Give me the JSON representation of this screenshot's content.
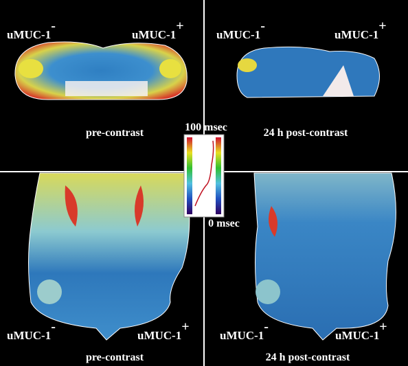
{
  "panels": [
    {
      "left_label": "uMUC-1",
      "left_sign": "-",
      "right_label": "uMUC-1",
      "right_sign": "+",
      "caption": "pre-contrast"
    },
    {
      "left_label": "uMUC-1",
      "left_sign": "-",
      "right_label": "uMUC-1",
      "right_sign": "+",
      "caption": "24 h post-contrast"
    },
    {
      "left_label": "uMUC-1",
      "left_sign": "-",
      "right_label": "uMUC-1",
      "right_sign": "+",
      "caption": "pre-contrast"
    },
    {
      "left_label": "uMUC-1",
      "left_sign": "-",
      "right_label": "uMUC-1",
      "right_sign": "+",
      "caption": "24 h post-contrast"
    }
  ],
  "colorbar": {
    "max_label": "100 msec",
    "min_label": "0 msec"
  }
}
